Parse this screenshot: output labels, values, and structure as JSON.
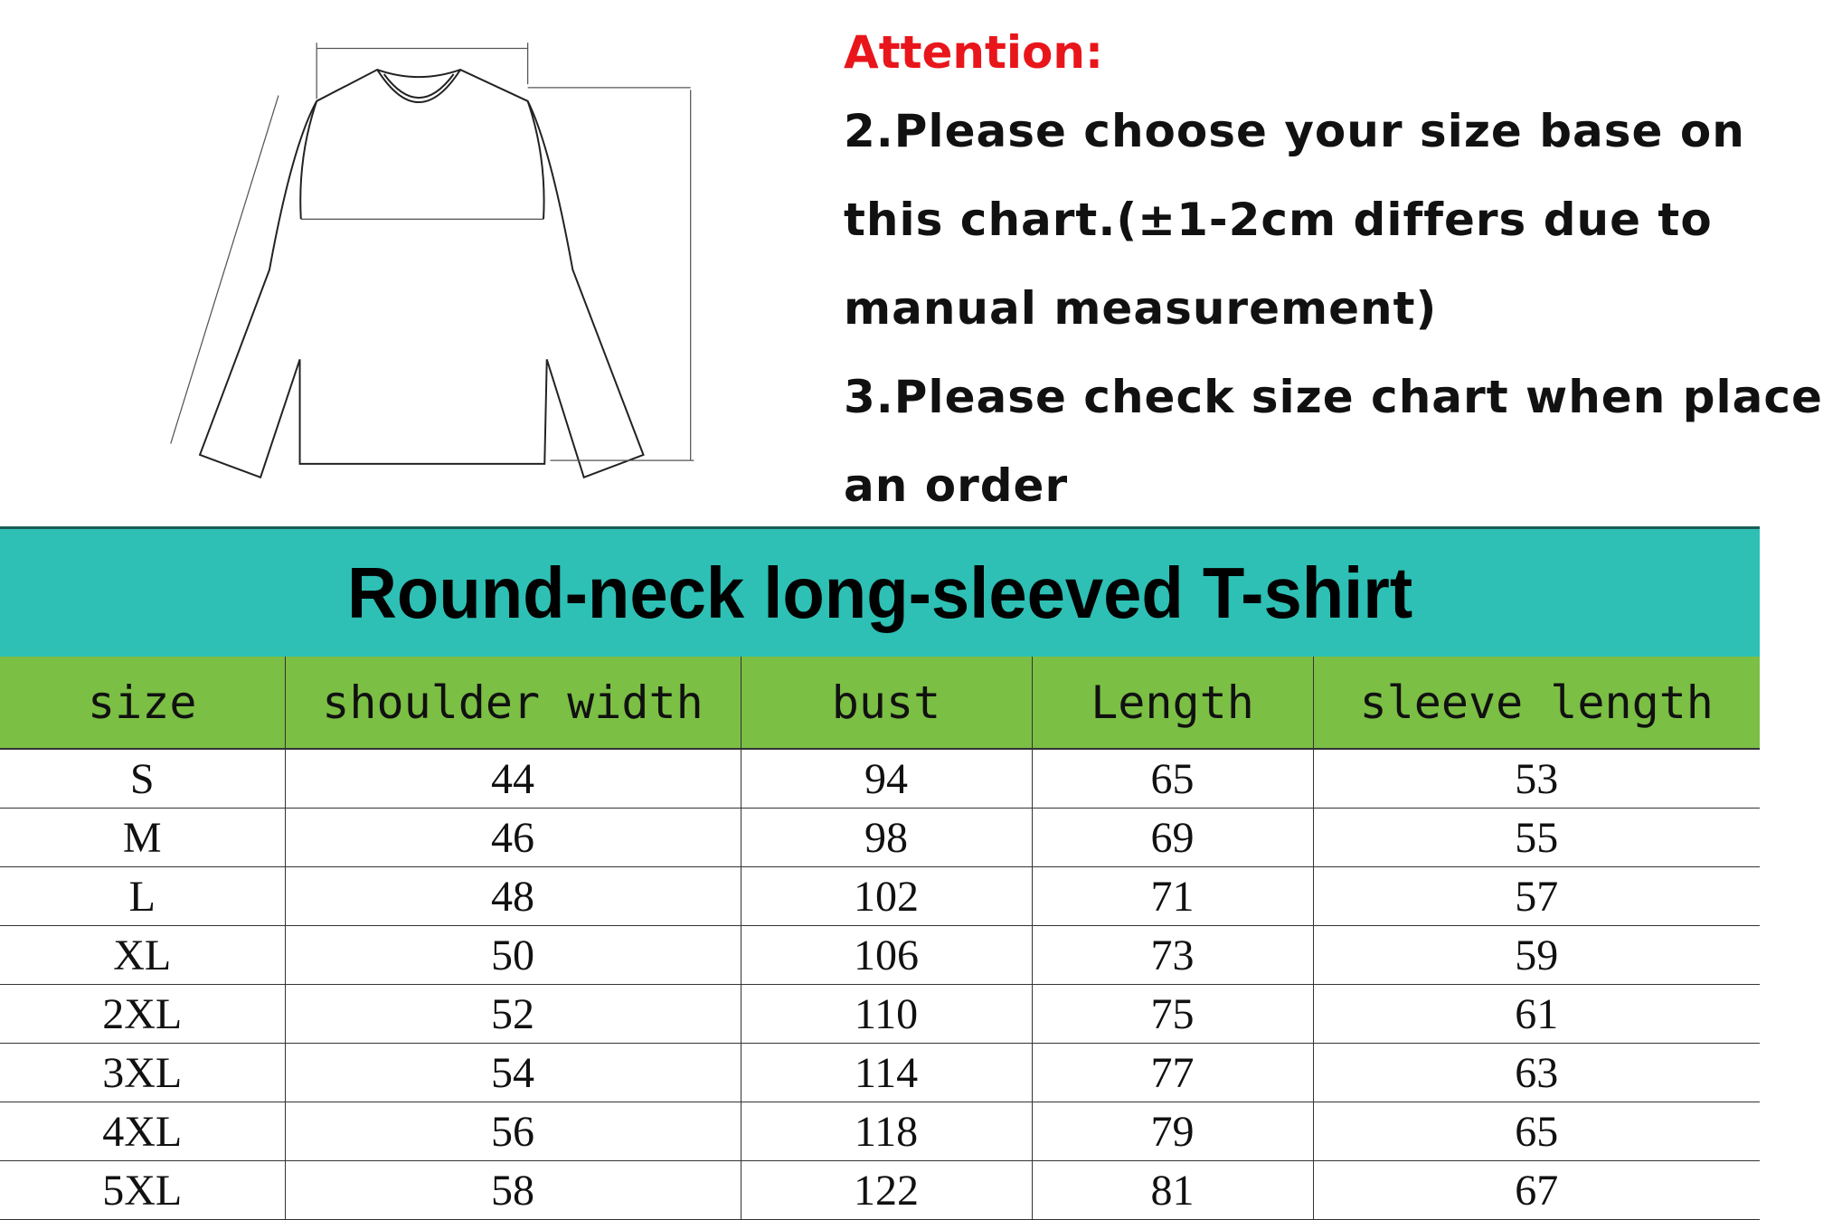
{
  "notes": {
    "attention": "Attention:",
    "lines": [
      "2.Please choose your size base on",
      "this chart.(±1-2cm differs due to",
      "manual measurement)",
      "3.Please check size chart when place",
      "an order"
    ]
  },
  "title": "Round-neck long-sleeved T-shirt",
  "colors": {
    "attention": "#e8161b",
    "banner": "#2ec0b5",
    "header": "#7bbf44"
  },
  "table": {
    "headers": [
      "size",
      "shoulder width",
      "bust",
      "Length",
      "sleeve length"
    ],
    "rows": [
      [
        "S",
        "44",
        "94",
        "65",
        "53"
      ],
      [
        "M",
        "46",
        "98",
        "69",
        "55"
      ],
      [
        "L",
        "48",
        "102",
        "71",
        "57"
      ],
      [
        "XL",
        "50",
        "106",
        "73",
        "59"
      ],
      [
        "2XL",
        "52",
        "110",
        "75",
        "61"
      ],
      [
        "3XL",
        "54",
        "114",
        "77",
        "63"
      ],
      [
        "4XL",
        "56",
        "118",
        "79",
        "65"
      ],
      [
        "5XL",
        "58",
        "122",
        "81",
        "67"
      ]
    ]
  }
}
